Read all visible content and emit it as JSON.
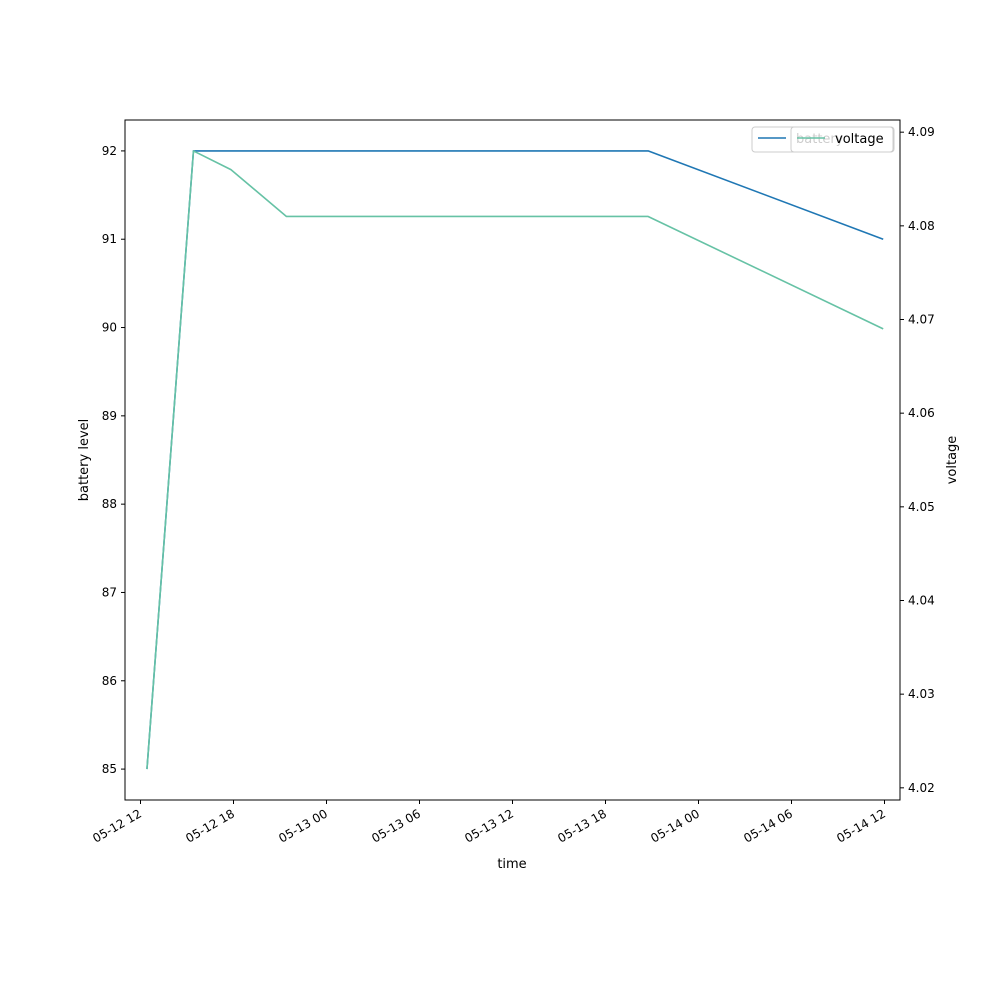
{
  "chart_data": {
    "type": "line",
    "xlabel": "time",
    "ylabel": "battery level",
    "y2label": "voltage",
    "x_ticks": [
      "05-12 12",
      "05-12 18",
      "05-13 00",
      "05-13 06",
      "05-13 12",
      "05-13 18",
      "05-14 00",
      "05-14 06",
      "05-14 12"
    ],
    "xlim": [
      "2024-05-12 11:00",
      "2024-05-14 13:00"
    ],
    "ylim": [
      84.65,
      92.35
    ],
    "y_ticks": [
      85,
      86,
      87,
      88,
      89,
      90,
      91,
      92
    ],
    "y2lim": [
      4.0187,
      4.0913
    ],
    "y2_ticks": [
      "4.02",
      "4.03",
      "4.04",
      "4.05",
      "4.06",
      "4.07",
      "4.08",
      "4.09"
    ],
    "series": [
      {
        "name": "battery",
        "axis": "left",
        "color": "#1f77b4",
        "x": [
          "2024-05-12 12:25",
          "2024-05-12 15:25",
          "2024-05-13 20:45",
          "2024-05-14 11:55"
        ],
        "values": [
          85,
          92,
          92,
          91
        ]
      },
      {
        "name": "voltage",
        "axis": "right",
        "color": "#66c2a5",
        "x": [
          "2024-05-12 12:25",
          "2024-05-12 15:25",
          "2024-05-12 17:50",
          "2024-05-12 21:25",
          "2024-05-13 20:45",
          "2024-05-14 11:55"
        ],
        "values": [
          4.022,
          4.088,
          4.086,
          4.081,
          4.081,
          4.069
        ]
      }
    ],
    "legends": [
      {
        "entries": [
          "battery"
        ],
        "placement": "top-right"
      },
      {
        "entries": [
          "voltage"
        ],
        "placement": "top-right"
      }
    ],
    "grid": false
  }
}
